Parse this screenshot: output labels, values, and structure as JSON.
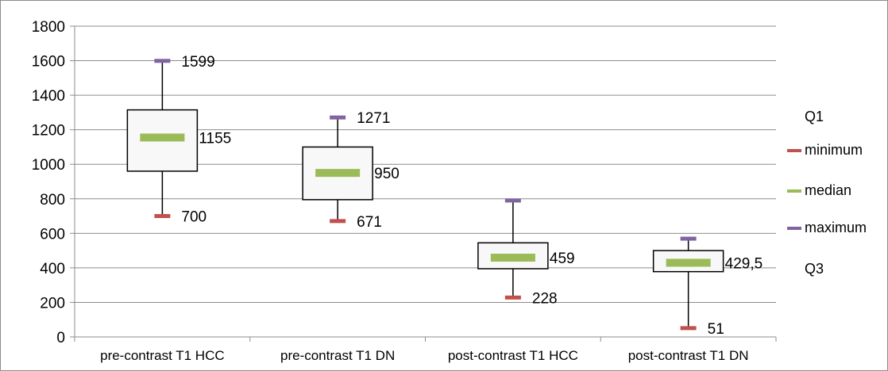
{
  "chart_data": {
    "type": "box",
    "categories": [
      "pre-contrast T1 HCC",
      "pre-contrast T1 DN",
      "post-contrast T1 HCC",
      "post-contrast T1 DN"
    ],
    "series": [
      {
        "name": "Q1",
        "values": [
          960,
          795,
          395,
          378
        ]
      },
      {
        "name": "minimum",
        "values": [
          700,
          671,
          228,
          51
        ]
      },
      {
        "name": "median",
        "values": [
          1155,
          950,
          459,
          429.5
        ]
      },
      {
        "name": "maximum",
        "values": [
          1599,
          1271,
          790,
          569
        ]
      },
      {
        "name": "Q3",
        "values": [
          1315,
          1100,
          545,
          500
        ]
      }
    ],
    "data_labels": [
      {
        "category": 0,
        "series": "maximum",
        "text": "1599"
      },
      {
        "category": 0,
        "series": "median",
        "text": "1155"
      },
      {
        "category": 0,
        "series": "minimum",
        "text": "700"
      },
      {
        "category": 1,
        "series": "maximum",
        "text": "1271"
      },
      {
        "category": 1,
        "series": "median",
        "text": "950"
      },
      {
        "category": 1,
        "series": "minimum",
        "text": "671"
      },
      {
        "category": 2,
        "series": "median",
        "text": "459"
      },
      {
        "category": 2,
        "series": "minimum",
        "text": "228"
      },
      {
        "category": 3,
        "series": "median",
        "text": "429,5"
      },
      {
        "category": 3,
        "series": "minimum",
        "text": "51"
      }
    ],
    "ylim": [
      0,
      1800
    ],
    "yticks": [
      0,
      200,
      400,
      600,
      800,
      1000,
      1200,
      1400,
      1600,
      1800
    ],
    "grid": true,
    "legend_position": "right",
    "legend": [
      {
        "label": "Q1",
        "marker": false
      },
      {
        "label": "minimum",
        "marker": true
      },
      {
        "label": "median",
        "marker": true
      },
      {
        "label": "maximum",
        "marker": true
      },
      {
        "label": "Q3",
        "marker": false
      }
    ],
    "colors": {
      "minimum": "#c0504d",
      "median": "#9bbb59",
      "maximum": "#8064a2",
      "box_fill": "#f8f8f8",
      "box_stroke": "#000000",
      "grid": "#8c8c8c"
    }
  }
}
